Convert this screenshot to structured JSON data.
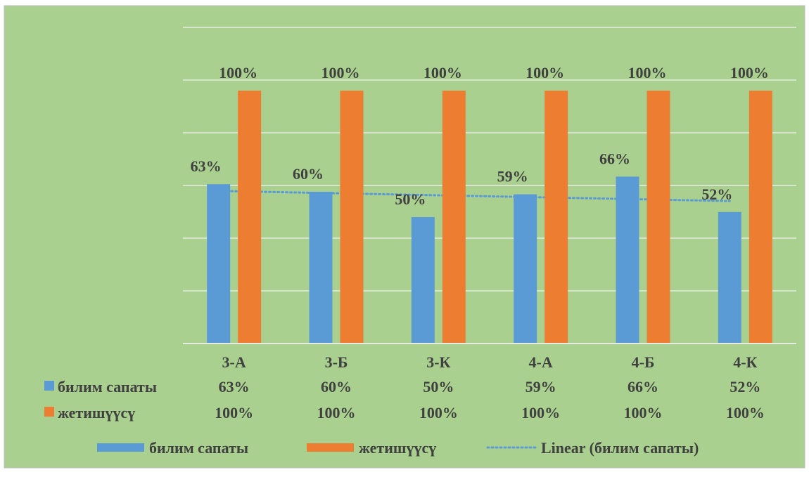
{
  "colors": {
    "background": "#a9d08e",
    "border": "#bfbfbf",
    "grid": "#e6ecdf",
    "text": "#404040",
    "series_blue": "#5b9bd5",
    "series_orange": "#ed7d31",
    "trendline": "#5b9bd5"
  },
  "chart_data": {
    "type": "bar",
    "title": "",
    "xlabel": "",
    "ylabel": "",
    "ylim": [
      0,
      1.25
    ],
    "grid": true,
    "value_format": "percent",
    "categories": [
      "3-А",
      "3-Б",
      "3-К",
      "4-А",
      "4-Б",
      "4-К"
    ],
    "series": [
      {
        "name": "билим сапаты",
        "values": [
          0.63,
          0.6,
          0.5,
          0.59,
          0.66,
          0.52
        ],
        "labels": [
          "63%",
          "60%",
          "50%",
          "59%",
          "66%",
          "52%"
        ]
      },
      {
        "name": "жетишүүсү",
        "values": [
          1.0,
          1.0,
          1.0,
          1.0,
          1.0,
          1.0
        ],
        "labels": [
          "100%",
          "100%",
          "100%",
          "100%",
          "100%",
          "100%"
        ]
      }
    ],
    "trendline": {
      "type": "linear",
      "series": "билим сапаты",
      "name": "Linear (билим сапаты)"
    },
    "data_table": true,
    "legend": {
      "position": "bottom",
      "entries": [
        "билим сапаты",
        "жетишүүсү",
        "Linear (билим сапаты)"
      ]
    }
  }
}
